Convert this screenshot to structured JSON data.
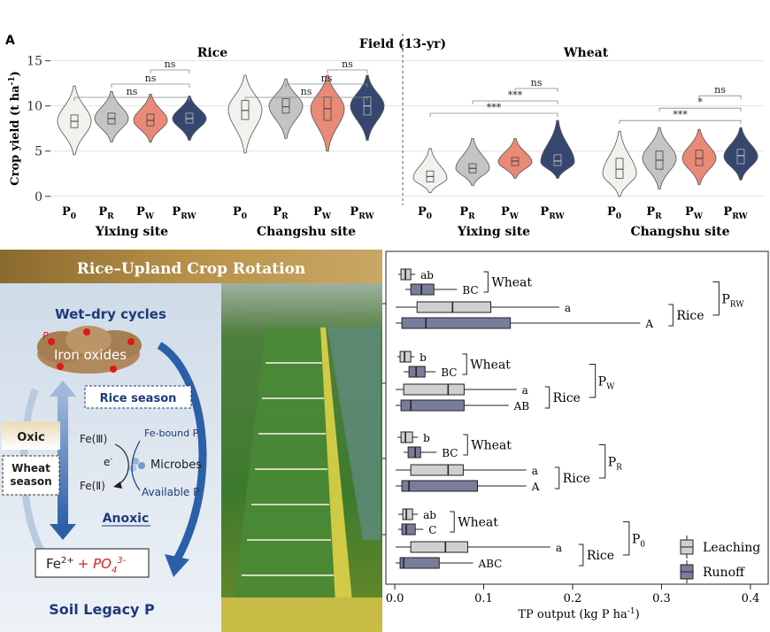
{
  "panel_label": "A",
  "top_title": "Field (13-yr)",
  "y_axis_label": "Crop yield (t ha",
  "y_axis_label_sup": "-1",
  "y_axis_label_tail": ")",
  "crops": [
    "Rice",
    "Wheat"
  ],
  "treatments": [
    {
      "base": "P",
      "sub": "0"
    },
    {
      "base": "P",
      "sub": "R"
    },
    {
      "base": "P",
      "sub": "W"
    },
    {
      "base": "P",
      "sub": "RW"
    }
  ],
  "colors": {
    "P0": "#f1f1ee",
    "PR": "#c4c4c4",
    "PW": "#e98a77",
    "PRW": "#35476f"
  },
  "chart_data": [
    {
      "type": "violin",
      "title": "",
      "ylabel": "Crop yield (t ha-1)",
      "ylim": [
        -1,
        18
      ],
      "yticks": [
        0,
        5,
        10,
        15
      ],
      "groups": [
        {
          "crop": "Rice",
          "site": "Yixing site",
          "series": [
            {
              "treatment": "P0",
              "min": 4.6,
              "max": 12.2,
              "q1": 7.6,
              "median": 8.3,
              "q3": 9.0,
              "mode": 8.3
            },
            {
              "treatment": "PR",
              "min": 6.0,
              "max": 11.6,
              "q1": 8.0,
              "median": 8.6,
              "q3": 9.2,
              "mode": 8.6
            },
            {
              "treatment": "PW",
              "min": 6.0,
              "max": 11.3,
              "q1": 7.8,
              "median": 8.4,
              "q3": 9.1,
              "mode": 8.4
            },
            {
              "treatment": "PRW",
              "min": 6.2,
              "max": 11.1,
              "q1": 8.1,
              "median": 8.6,
              "q3": 9.2,
              "mode": 8.6
            }
          ],
          "significance": [
            "ns",
            "ns",
            "ns"
          ]
        },
        {
          "crop": "Rice",
          "site": "Changshu site",
          "series": [
            {
              "treatment": "P0",
              "min": 4.8,
              "max": 13.4,
              "q1": 8.5,
              "median": 9.5,
              "q3": 10.6,
              "mode": 9.6
            },
            {
              "treatment": "PR",
              "min": 6.4,
              "max": 13.0,
              "q1": 9.2,
              "median": 9.9,
              "q3": 10.8,
              "mode": 10.0
            },
            {
              "treatment": "PW",
              "min": 5.0,
              "max": 13.4,
              "q1": 8.4,
              "median": 9.7,
              "q3": 11.0,
              "mode": 9.7
            },
            {
              "treatment": "PRW",
              "min": 6.2,
              "max": 13.4,
              "q1": 9.0,
              "median": 10.0,
              "q3": 11.0,
              "mode": 10.0
            }
          ],
          "significance": [
            "ns",
            "ns",
            "ns"
          ]
        },
        {
          "crop": "Wheat",
          "site": "Yixing site",
          "series": [
            {
              "treatment": "P0",
              "min": 0.4,
              "max": 5.3,
              "q1": 1.6,
              "median": 2.2,
              "q3": 2.8,
              "mode": 2.0
            },
            {
              "treatment": "PR",
              "min": 1.2,
              "max": 6.4,
              "q1": 2.6,
              "median": 3.1,
              "q3": 3.6,
              "mode": 3.1
            },
            {
              "treatment": "PW",
              "min": 2.0,
              "max": 6.4,
              "q1": 3.4,
              "median": 3.9,
              "q3": 4.3,
              "mode": 3.8
            },
            {
              "treatment": "PRW",
              "min": 2.0,
              "max": 8.4,
              "q1": 3.4,
              "median": 3.9,
              "q3": 4.6,
              "mode": 3.8
            }
          ],
          "significance": [
            "***",
            "***",
            "ns"
          ]
        },
        {
          "crop": "Wheat",
          "site": "Changshu site",
          "series": [
            {
              "treatment": "P0",
              "min": 0.0,
              "max": 7.2,
              "q1": 2.0,
              "median": 3.0,
              "q3": 4.2,
              "mode": 2.5
            },
            {
              "treatment": "PR",
              "min": 0.8,
              "max": 7.6,
              "q1": 3.0,
              "median": 4.0,
              "q3": 5.0,
              "mode": 4.2
            },
            {
              "treatment": "PW",
              "min": 1.3,
              "max": 7.4,
              "q1": 3.4,
              "median": 4.2,
              "q3": 5.1,
              "mode": 4.2
            },
            {
              "treatment": "PRW",
              "min": 1.8,
              "max": 7.6,
              "q1": 3.6,
              "median": 4.5,
              "q3": 5.2,
              "mode": 4.4
            }
          ],
          "significance": [
            "***",
            "*",
            "ns"
          ]
        }
      ]
    },
    {
      "type": "box",
      "orientation": "horizontal",
      "xlabel": "TP output (kg P ha",
      "xlabel_sup": "-1",
      "xlabel_tail": ")",
      "xlim": [
        -0.01,
        0.42
      ],
      "xticks": [
        0.0,
        0.1,
        0.2,
        0.3,
        0.4
      ],
      "xtick_labels": [
        "0.0",
        "0.1",
        "0.2",
        "0.3",
        "0.4"
      ],
      "legend": [
        {
          "label": "Leaching",
          "color": "#d0d0d0"
        },
        {
          "label": "Runoff",
          "color": "#7a7c9c"
        }
      ],
      "legend_position": "bottom-right",
      "crop_labels": {
        "wheat": "Wheat",
        "rice": "Rice"
      },
      "groups": [
        {
          "treatment": {
            "base": "P",
            "sub": "RW"
          },
          "rows": [
            {
              "crop": "Wheat",
              "type": "Leaching",
              "min": 0.004,
              "q1": 0.007,
              "median": 0.012,
              "q3": 0.018,
              "max": 0.023,
              "letter": "ab"
            },
            {
              "crop": "Wheat",
              "type": "Runoff",
              "min": 0.012,
              "q1": 0.018,
              "median": 0.03,
              "q3": 0.044,
              "max": 0.07,
              "letter": "BC"
            },
            {
              "crop": "Rice",
              "type": "Leaching",
              "min": 0.001,
              "q1": 0.025,
              "median": 0.065,
              "q3": 0.108,
              "max": 0.185,
              "letter": "a"
            },
            {
              "crop": "Rice",
              "type": "Runoff",
              "min": 0.001,
              "q1": 0.008,
              "median": 0.035,
              "q3": 0.13,
              "max": 0.276,
              "letter": "A"
            }
          ]
        },
        {
          "treatment": {
            "base": "P",
            "sub": "W"
          },
          "rows": [
            {
              "crop": "Wheat",
              "type": "Leaching",
              "min": 0.003,
              "q1": 0.006,
              "median": 0.011,
              "q3": 0.018,
              "max": 0.022,
              "letter": "b"
            },
            {
              "crop": "Wheat",
              "type": "Runoff",
              "min": 0.01,
              "q1": 0.016,
              "median": 0.024,
              "q3": 0.034,
              "max": 0.046,
              "letter": "BC"
            },
            {
              "crop": "Rice",
              "type": "Leaching",
              "min": 0.001,
              "q1": 0.01,
              "median": 0.06,
              "q3": 0.078,
              "max": 0.137,
              "letter": "a"
            },
            {
              "crop": "Rice",
              "type": "Runoff",
              "min": 0.001,
              "q1": 0.007,
              "median": 0.018,
              "q3": 0.078,
              "max": 0.128,
              "letter": "AB"
            }
          ]
        },
        {
          "treatment": {
            "base": "P",
            "sub": "R"
          },
          "rows": [
            {
              "crop": "Wheat",
              "type": "Leaching",
              "min": 0.003,
              "q1": 0.007,
              "median": 0.012,
              "q3": 0.02,
              "max": 0.026,
              "letter": "b"
            },
            {
              "crop": "Wheat",
              "type": "Runoff",
              "min": 0.01,
              "q1": 0.015,
              "median": 0.023,
              "q3": 0.029,
              "max": 0.047,
              "letter": "BC"
            },
            {
              "crop": "Rice",
              "type": "Leaching",
              "min": 0.001,
              "q1": 0.018,
              "median": 0.06,
              "q3": 0.077,
              "max": 0.148,
              "letter": "a"
            },
            {
              "crop": "Rice",
              "type": "Runoff",
              "min": 0.001,
              "q1": 0.008,
              "median": 0.016,
              "q3": 0.093,
              "max": 0.148,
              "letter": "A"
            }
          ]
        },
        {
          "treatment": {
            "base": "P",
            "sub": "0"
          },
          "rows": [
            {
              "crop": "Wheat",
              "type": "Leaching",
              "min": 0.004,
              "q1": 0.009,
              "median": 0.013,
              "q3": 0.02,
              "max": 0.026,
              "letter": "ab"
            },
            {
              "crop": "Wheat",
              "type": "Runoff",
              "min": 0.004,
              "q1": 0.008,
              "median": 0.013,
              "q3": 0.023,
              "max": 0.032,
              "letter": "C"
            },
            {
              "crop": "Rice",
              "type": "Leaching",
              "min": 0.001,
              "q1": 0.018,
              "median": 0.057,
              "q3": 0.082,
              "max": 0.175,
              "letter": "a"
            },
            {
              "crop": "Rice",
              "type": "Runoff",
              "min": 0.001,
              "q1": 0.006,
              "median": 0.01,
              "q3": 0.05,
              "max": 0.088,
              "letter": "ABC"
            }
          ]
        }
      ]
    }
  ],
  "schematic": {
    "title": "Rice–Upland Crop Rotation",
    "wet_dry": "Wet–dry cycles",
    "iron_oxides": "Iron oxides",
    "p_dot_label": "P",
    "rice_season": "Rice season",
    "oxic": "Oxic",
    "wheat_season": "Wheat\nseason",
    "fe3": "Fe(Ⅲ)",
    "electron": "e",
    "electron_sup": "-",
    "fe2": "Fe(Ⅱ)",
    "fe_bound_p": "Fe-bound P",
    "microbes": "Microbes",
    "available_p": "Available P",
    "anoxic": "Anoxic",
    "fe2_ion": "Fe",
    "fe2_ion_sup": "2+",
    "phosphate": "+ PO",
    "phosphate_sub": "4",
    "phosphate_sup": "3-",
    "soil_legacy": "Soil Legacy P"
  }
}
